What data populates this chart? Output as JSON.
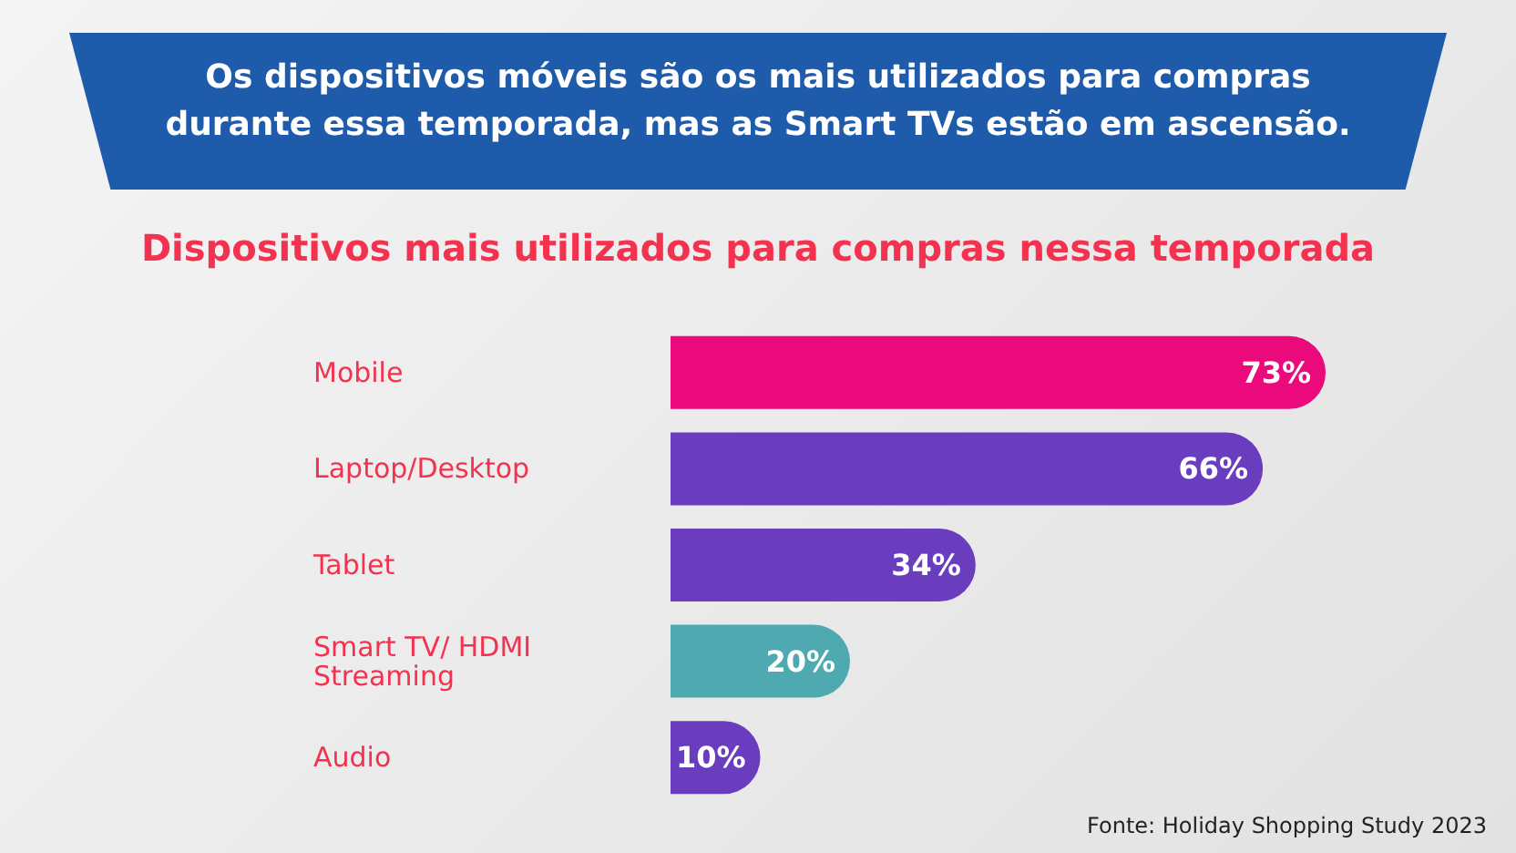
{
  "chart_data": {
    "type": "bar",
    "orientation": "horizontal",
    "title": "Os dispositivos móveis são os mais utilizados para compras durante essa temporada, mas as Smart TVs estão em ascensão.",
    "subtitle": "Dispositivos mais utilizados para compras nessa temporada",
    "categories": [
      "Mobile",
      "Laptop/Desktop",
      "Tablet",
      "Smart TV/ HDMI Streaming",
      "Audio"
    ],
    "values": [
      73,
      66,
      34,
      20,
      10
    ],
    "colors": [
      "#ea0a7c",
      "#6a3dbf",
      "#6a3dbf",
      "#4ea9b1",
      "#6a3dbf"
    ],
    "value_labels": [
      "73%",
      "66%",
      "34%",
      "20%",
      "10%"
    ],
    "annotations": [
      "Fonte: Holiday Shopping Study 2023"
    ]
  }
}
